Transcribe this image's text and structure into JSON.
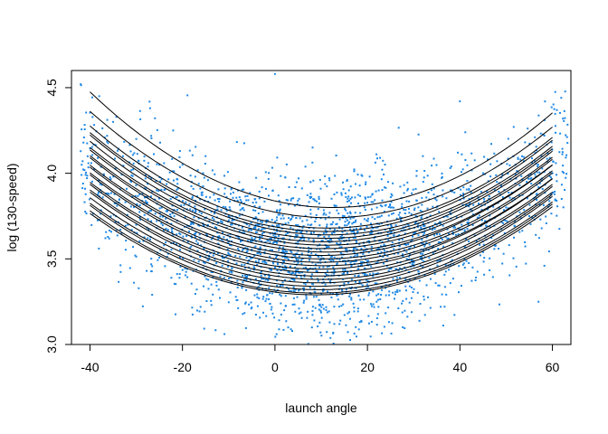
{
  "chart_data": {
    "type": "scatter",
    "title": "",
    "xlabel": "launch angle",
    "ylabel": "log (130-speed)",
    "xlim": [
      -44,
      64
    ],
    "ylim": [
      3.0,
      4.6
    ],
    "x_ticks": [
      -40,
      -20,
      0,
      20,
      40,
      60
    ],
    "y_ticks": [
      3.0,
      3.5,
      4.0,
      4.5
    ],
    "x_tick_labels": [
      "-40",
      "-20",
      "0",
      "20",
      "40",
      "60"
    ],
    "y_tick_labels": [
      "3.0",
      "3.5",
      "4.0",
      "4.5"
    ],
    "grid": false,
    "legend": "none",
    "colors": {
      "points": "#1E88E5",
      "curves": "#000000"
    },
    "series": [
      {
        "kind": "points",
        "description_count": 2500,
        "sample_points": [
          [
            -42,
            4.52
          ],
          [
            -38,
            4.45
          ],
          [
            -35,
            4.3
          ],
          [
            -30,
            4.2
          ],
          [
            -27,
            4.38
          ],
          [
            -25,
            4.05
          ],
          [
            -22,
            4.25
          ],
          [
            -20,
            4.05
          ],
          [
            -18,
            3.95
          ],
          [
            -15,
            4.1
          ],
          [
            -12,
            3.85
          ],
          [
            -10,
            3.75
          ],
          [
            -8,
            3.9
          ],
          [
            -5,
            3.55
          ],
          [
            -3,
            3.35
          ],
          [
            0,
            4.58
          ],
          [
            0,
            3.45
          ],
          [
            2,
            3.2
          ],
          [
            5,
            3.6
          ],
          [
            8,
            3.1
          ],
          [
            10,
            3.5
          ],
          [
            12,
            3.3
          ],
          [
            15,
            3.75
          ],
          [
            18,
            3.4
          ],
          [
            20,
            3.6
          ],
          [
            22,
            3.25
          ],
          [
            25,
            3.8
          ],
          [
            28,
            3.55
          ],
          [
            30,
            3.65
          ],
          [
            32,
            4.1
          ],
          [
            35,
            3.7
          ],
          [
            38,
            3.9
          ],
          [
            40,
            4.42
          ],
          [
            42,
            3.85
          ],
          [
            45,
            4.0
          ],
          [
            48,
            3.95
          ],
          [
            50,
            3.8
          ],
          [
            52,
            4.05
          ],
          [
            55,
            3.75
          ],
          [
            57,
            3.25
          ],
          [
            60,
            4.0
          ],
          [
            62,
            3.85
          ]
        ]
      },
      {
        "kind": "curves",
        "model": "quadratic in launch angle",
        "curves": [
          {
            "vertex_x": 12.5,
            "vertex_y": 3.8,
            "curvature": 0.000245
          },
          {
            "vertex_x": 12.0,
            "vertex_y": 3.74,
            "curvature": 0.00023
          },
          {
            "vertex_x": 11.5,
            "vertex_y": 3.68,
            "curvature": 0.000225
          },
          {
            "vertex_x": 11.0,
            "vertex_y": 3.66,
            "curvature": 0.000222
          },
          {
            "vertex_x": 11.5,
            "vertex_y": 3.64,
            "curvature": 0.00022
          },
          {
            "vertex_x": 11.0,
            "vertex_y": 3.62,
            "curvature": 0.000218
          },
          {
            "vertex_x": 10.5,
            "vertex_y": 3.6,
            "curvature": 0.000216
          },
          {
            "vertex_x": 11.0,
            "vertex_y": 3.58,
            "curvature": 0.000214
          },
          {
            "vertex_x": 10.5,
            "vertex_y": 3.56,
            "curvature": 0.000213
          },
          {
            "vertex_x": 11.0,
            "vertex_y": 3.54,
            "curvature": 0.000212
          },
          {
            "vertex_x": 10.0,
            "vertex_y": 3.52,
            "curvature": 0.000211
          },
          {
            "vertex_x": 10.5,
            "vertex_y": 3.5,
            "curvature": 0.00021
          },
          {
            "vertex_x": 10.0,
            "vertex_y": 3.48,
            "curvature": 0.000209
          },
          {
            "vertex_x": 10.5,
            "vertex_y": 3.46,
            "curvature": 0.000208
          },
          {
            "vertex_x": 9.5,
            "vertex_y": 3.44,
            "curvature": 0.000207
          },
          {
            "vertex_x": 10.0,
            "vertex_y": 3.42,
            "curvature": 0.000206
          },
          {
            "vertex_x": 9.5,
            "vertex_y": 3.4,
            "curvature": 0.000205
          },
          {
            "vertex_x": 10.0,
            "vertex_y": 3.38,
            "curvature": 0.000204
          },
          {
            "vertex_x": 9.5,
            "vertex_y": 3.36,
            "curvature": 0.000203
          },
          {
            "vertex_x": 9.0,
            "vertex_y": 3.34,
            "curvature": 0.000202
          },
          {
            "vertex_x": 9.5,
            "vertex_y": 3.32,
            "curvature": 0.000201
          },
          {
            "vertex_x": 9.0,
            "vertex_y": 3.3,
            "curvature": 0.0002
          },
          {
            "vertex_x": 9.0,
            "vertex_y": 3.29,
            "curvature": 0.000198
          }
        ]
      }
    ]
  }
}
